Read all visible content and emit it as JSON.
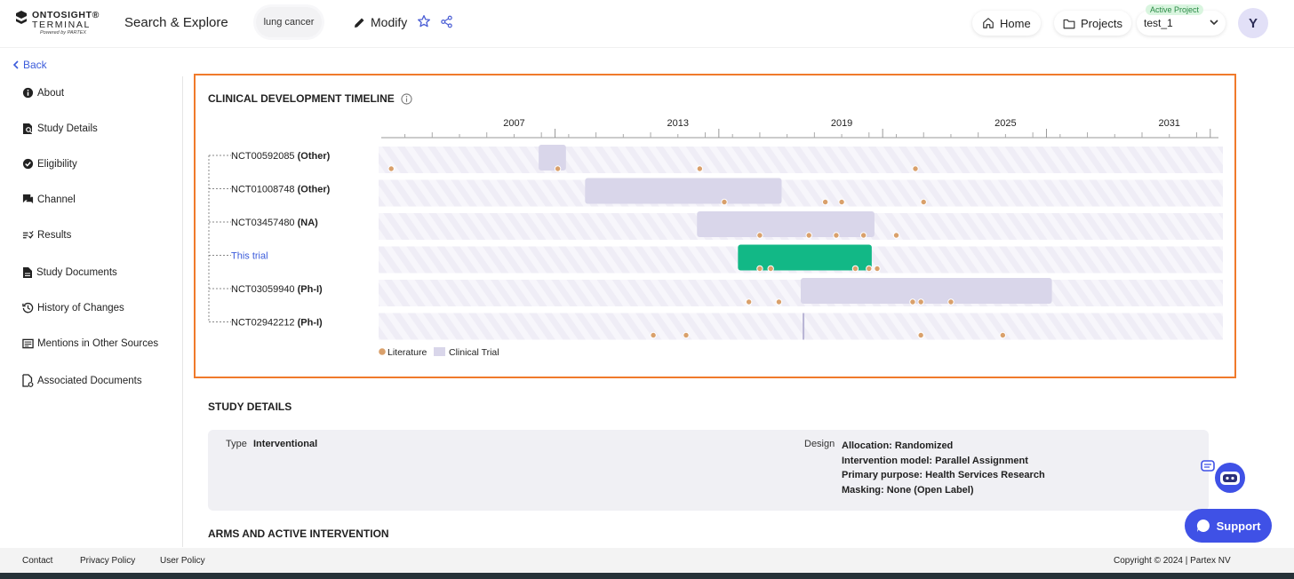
{
  "header": {
    "logo_line1": "ONTOSIGHT®",
    "logo_line2": "TERMINAL",
    "logo_line3": "Powered by PARTEX",
    "app_title": "Search & Explore",
    "query": "lung cancer",
    "modify_label": "Modify",
    "home_label": "Home",
    "projects_label": "Projects",
    "active_project_badge": "Active Project",
    "active_project": "test_1",
    "avatar_initial": "Y"
  },
  "nav": {
    "back_label": "Back",
    "items": [
      {
        "label": "About",
        "icon": "info-icon"
      },
      {
        "label": "Study Details",
        "icon": "document-search-icon"
      },
      {
        "label": "Eligibility",
        "icon": "check-circle-icon"
      },
      {
        "label": "Channel",
        "icon": "chat-icon"
      },
      {
        "label": "Results",
        "icon": "list-check-icon"
      },
      {
        "label": "Study Documents",
        "icon": "document-icon"
      },
      {
        "label": "History of Changes",
        "icon": "history-icon"
      },
      {
        "label": "Mentions in Other Sources",
        "icon": "newspaper-icon"
      },
      {
        "label": "Associated Documents",
        "icon": "attachment-doc-icon"
      }
    ]
  },
  "timeline": {
    "title": "CLINICAL DEVELOPMENT TIMELINE",
    "legend_literature": "Literature",
    "legend_trial": "Clinical Trial",
    "colors": {
      "trial": "#d9d6ea",
      "this_trial": "#12b886",
      "literature": "#d9a06b",
      "stripe": "#f3f1f8"
    }
  },
  "chart_data": {
    "type": "timeline",
    "x_ticks": [
      2007,
      2013,
      2019,
      2025,
      2031
    ],
    "xlim": [
      2002.2,
      2032.8
    ],
    "rows": [
      {
        "id": "NCT00592085",
        "phase": "(Other)",
        "trial": [
          2007.9,
          2008.9
        ],
        "literature": [
          2002.5,
          2008.6,
          2013.8,
          2021.7
        ]
      },
      {
        "id": "NCT01008748",
        "phase": "(Other)",
        "trial": [
          2009.6,
          2016.8
        ],
        "literature": [
          2014.7,
          2018.4,
          2019.0,
          2022.0
        ]
      },
      {
        "id": "NCT03457480",
        "phase": "(NA)",
        "trial": [
          2013.7,
          2020.2
        ],
        "literature": [
          2016.0,
          2017.8,
          2018.8,
          2019.8,
          2021.0
        ]
      },
      {
        "id": "This trial",
        "phase": "",
        "trial": [
          2015.2,
          2020.1
        ],
        "literature": [
          2016.0,
          2016.4,
          2019.5,
          2020.0,
          2020.3
        ]
      },
      {
        "id": "NCT03059940",
        "phase": "(Ph-I)",
        "trial": [
          2017.5,
          2026.7
        ],
        "literature": [
          2015.6,
          2016.7,
          2021.6,
          2021.9,
          2023.0
        ]
      },
      {
        "id": "NCT02942212",
        "phase": "(Ph-I)",
        "trial": [
          2017.6,
          2017.65
        ],
        "literature": [
          2012.1,
          2013.3,
          2021.9,
          2024.9
        ]
      }
    ]
  },
  "study_details": {
    "title": "STUDY DETAILS",
    "type_label": "Type",
    "type_value": "Interventional",
    "design_label": "Design",
    "design_lines": [
      "Allocation: Randomized",
      "Intervention model: Parallel Assignment",
      "Primary purpose: Health Services Research",
      "Masking: None (Open Label)"
    ]
  },
  "arms_title": "ARMS AND ACTIVE INTERVENTION",
  "support_label": "Support",
  "footer": {
    "contact": "Contact",
    "privacy": "Privacy Policy",
    "user_policy": "User Policy",
    "copyright": "Copyright © 2024 | Partex NV"
  }
}
